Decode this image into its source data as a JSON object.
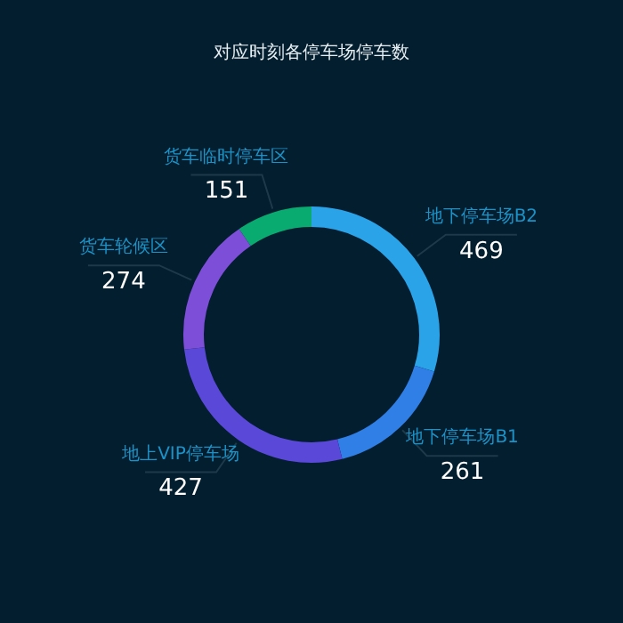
{
  "chart_data": {
    "type": "donut",
    "title": "对应时刻各停车场停车数",
    "categories": [
      "地下停车场B2",
      "地下停车场B1",
      "地上VIP停车场",
      "货车轮候区",
      "货车临时停车区"
    ],
    "values": [
      469,
      261,
      427,
      274,
      151
    ],
    "colors": [
      "#2aa3e8",
      "#2f7fe6",
      "#5a49d8",
      "#7d4ed8",
      "#0aab70"
    ],
    "data_labels": true,
    "legend": false
  }
}
